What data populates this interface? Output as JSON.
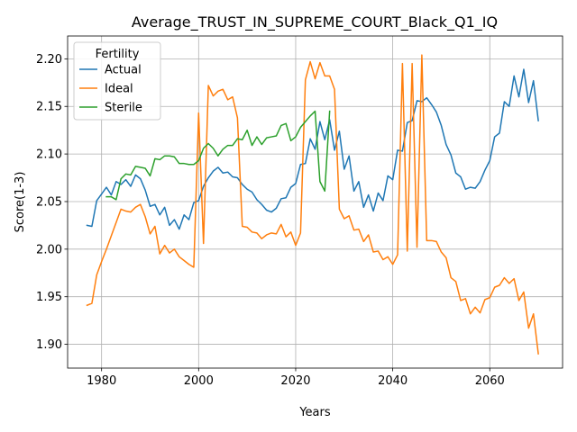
{
  "chart_data": {
    "type": "line",
    "title": "Average_TRUST_IN_SUPREME_COURT_Black_Q1_IQ",
    "xlabel": "Years",
    "ylabel": "Score(1-3)",
    "xlim": [
      1973,
      2075
    ],
    "ylim": [
      1.875,
      2.224
    ],
    "xticks": [
      1980,
      2000,
      2020,
      2040,
      2060
    ],
    "xtick_labels": [
      "1980",
      "2000",
      "2020",
      "2040",
      "2060"
    ],
    "yticks": [
      1.9,
      1.95,
      2.0,
      2.05,
      2.1,
      2.15,
      2.2
    ],
    "ytick_labels": [
      "1.90",
      "1.95",
      "2.00",
      "2.05",
      "2.10",
      "2.15",
      "2.20"
    ],
    "grid": true,
    "legend": {
      "title": "Fertility",
      "placement": "top-left"
    },
    "series": [
      {
        "name": "Actual",
        "color": "#1f77b4",
        "x": [
          1977,
          1978,
          1979,
          1980,
          1981,
          1982,
          1983,
          1984,
          1985,
          1986,
          1987,
          1988,
          1989,
          1990,
          1991,
          1992,
          1993,
          1994,
          1995,
          1996,
          1997,
          1998,
          1999,
          2000,
          2001,
          2002,
          2003,
          2004,
          2005,
          2006,
          2007,
          2008,
          2009,
          2010,
          2011,
          2012,
          2013,
          2014,
          2015,
          2016,
          2017,
          2018,
          2019,
          2020,
          2021,
          2022,
          2023,
          2024,
          2025,
          2026,
          2027,
          2028,
          2029,
          2030,
          2031,
          2032,
          2033,
          2034,
          2035,
          2036,
          2037,
          2038,
          2039,
          2040,
          2041,
          2042,
          2043,
          2044,
          2045,
          2046,
          2047,
          2048,
          2049,
          2050,
          2051,
          2052,
          2053,
          2054,
          2055,
          2056,
          2057,
          2058,
          2059,
          2060,
          2061,
          2062,
          2063,
          2064,
          2065,
          2066,
          2067,
          2068,
          2069,
          2070
        ],
        "y": [
          2.025,
          2.024,
          2.051,
          2.058,
          2.065,
          2.057,
          2.071,
          2.068,
          2.073,
          2.066,
          2.078,
          2.074,
          2.062,
          2.045,
          2.047,
          2.036,
          2.044,
          2.025,
          2.031,
          2.021,
          2.036,
          2.031,
          2.049,
          2.051,
          2.066,
          2.075,
          2.082,
          2.086,
          2.08,
          2.081,
          2.076,
          2.075,
          2.068,
          2.063,
          2.06,
          2.052,
          2.047,
          2.041,
          2.039,
          2.043,
          2.053,
          2.054,
          2.065,
          2.069,
          2.089,
          2.09,
          2.116,
          2.105,
          2.134,
          2.115,
          2.136,
          2.104,
          2.124,
          2.084,
          2.098,
          2.061,
          2.071,
          2.044,
          2.057,
          2.04,
          2.059,
          2.051,
          2.077,
          2.073,
          2.104,
          2.103,
          2.133,
          2.135,
          2.156,
          2.155,
          2.159,
          2.152,
          2.144,
          2.13,
          2.11,
          2.099,
          2.08,
          2.076,
          2.063,
          2.065,
          2.064,
          2.071,
          2.083,
          2.093,
          2.118,
          2.122,
          2.155,
          2.15,
          2.182,
          2.16,
          2.189,
          2.154,
          2.177,
          2.135
        ]
      },
      {
        "name": "Ideal",
        "color": "#ff7f0e",
        "x": [
          1977,
          1978,
          1979,
          1980,
          1981,
          1982,
          1983,
          1984,
          1985,
          1986,
          1987,
          1988,
          1989,
          1990,
          1991,
          1992,
          1993,
          1994,
          1995,
          1996,
          1997,
          1998,
          1999,
          2000,
          2001,
          2002,
          2003,
          2004,
          2005,
          2006,
          2007,
          2008,
          2009,
          2010,
          2011,
          2012,
          2013,
          2014,
          2015,
          2016,
          2017,
          2018,
          2019,
          2020,
          2021,
          2022,
          2023,
          2024,
          2025,
          2026,
          2027,
          2028,
          2029,
          2030,
          2031,
          2032,
          2033,
          2034,
          2035,
          2036,
          2037,
          2038,
          2039,
          2040,
          2041,
          2042,
          2043,
          2044,
          2045,
          2046,
          2047,
          2048,
          2049,
          2050,
          2051,
          2052,
          2053,
          2054,
          2055,
          2056,
          2057,
          2058,
          2059,
          2060,
          2061,
          2062,
          2063,
          2064,
          2065,
          2066,
          2067,
          2068,
          2069,
          2070
        ],
        "y": [
          1.941,
          1.943,
          1.973,
          1.987,
          2.0,
          2.014,
          2.028,
          2.042,
          2.04,
          2.039,
          2.044,
          2.047,
          2.034,
          2.016,
          2.024,
          1.995,
          2.004,
          1.996,
          2.0,
          1.992,
          1.988,
          1.984,
          1.981,
          2.143,
          2.006,
          2.172,
          2.161,
          2.166,
          2.168,
          2.157,
          2.16,
          2.138,
          2.024,
          2.023,
          2.018,
          2.017,
          2.011,
          2.015,
          2.017,
          2.016,
          2.026,
          2.013,
          2.018,
          2.004,
          2.017,
          2.178,
          2.197,
          2.179,
          2.196,
          2.182,
          2.182,
          2.168,
          2.042,
          2.032,
          2.035,
          2.02,
          2.021,
          2.008,
          2.015,
          1.997,
          1.998,
          1.989,
          1.992,
          1.984,
          1.994,
          2.195,
          1.998,
          2.195,
          2.002,
          2.204,
          2.009,
          2.009,
          2.008,
          1.997,
          1.991,
          1.97,
          1.966,
          1.946,
          1.948,
          1.932,
          1.939,
          1.933,
          1.947,
          1.949,
          1.96,
          1.962,
          1.97,
          1.964,
          1.969,
          1.946,
          1.955,
          1.917,
          1.932,
          1.89
        ]
      },
      {
        "name": "Sterile",
        "color": "#2ca02c",
        "x": [
          1981,
          1982,
          1983,
          1984,
          1985,
          1986,
          1987,
          1988,
          1989,
          1990,
          1991,
          1992,
          1993,
          1994,
          1995,
          1996,
          1997,
          1998,
          1999,
          2000,
          2001,
          2002,
          2003,
          2004,
          2005,
          2006,
          2007,
          2008,
          2009,
          2010,
          2011,
          2012,
          2013,
          2014,
          2015,
          2016,
          2017,
          2018,
          2019,
          2020,
          2021,
          2022,
          2023,
          2024,
          2025,
          2026,
          2027
        ],
        "y": [
          2.055,
          2.055,
          2.052,
          2.074,
          2.079,
          2.078,
          2.087,
          2.086,
          2.085,
          2.077,
          2.095,
          2.094,
          2.098,
          2.098,
          2.097,
          2.09,
          2.09,
          2.089,
          2.089,
          2.093,
          2.106,
          2.111,
          2.106,
          2.098,
          2.105,
          2.109,
          2.109,
          2.116,
          2.115,
          2.125,
          2.109,
          2.118,
          2.11,
          2.117,
          2.118,
          2.119,
          2.13,
          2.132,
          2.114,
          2.118,
          2.128,
          2.134,
          2.14,
          2.145,
          2.071,
          2.061,
          2.145
        ]
      }
    ]
  }
}
